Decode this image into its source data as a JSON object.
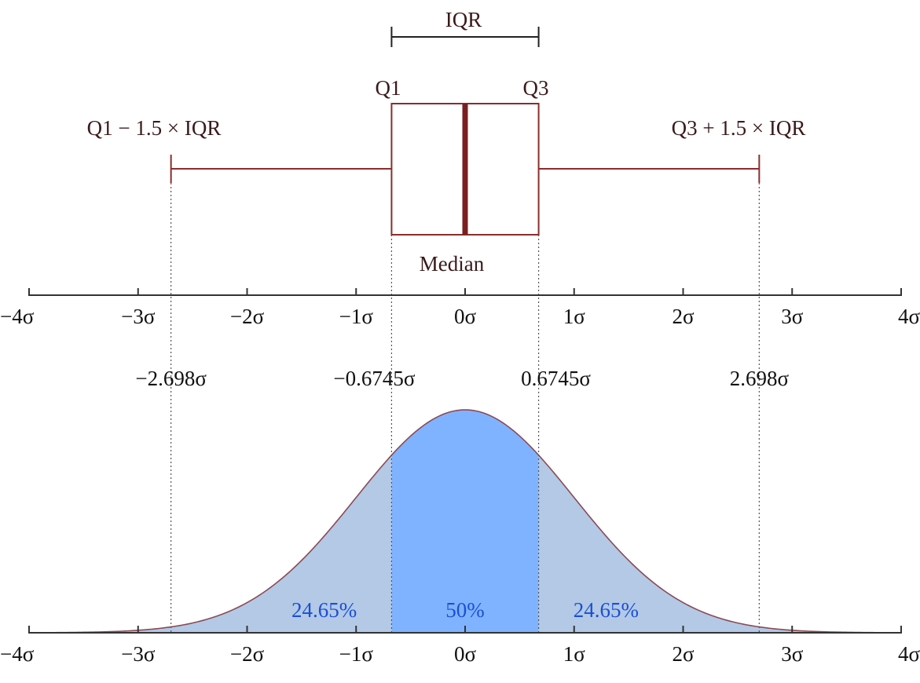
{
  "colors": {
    "box": "#8b2d2d",
    "median": "#7a1f1f",
    "label": "#3a1a1a",
    "axis": "#333333",
    "tail_fill": "#b3c9e6",
    "center_fill": "#80b3ff",
    "curve": "#8b4a55",
    "pct_text": "#1a4fd6"
  },
  "labels": {
    "iqr": "IQR",
    "q1": "Q1",
    "q3": "Q3",
    "lower_fence": "Q1 − 1.5 × IQR",
    "upper_fence": "Q3 + 1.5 × IQR",
    "median": "Median"
  },
  "chart_data": {
    "type": "area",
    "x_range": [
      -4,
      4
    ],
    "axis_ticks": [
      -4,
      -3,
      -2,
      -1,
      0,
      1,
      2,
      3,
      4
    ],
    "tick_labels": [
      "−4σ",
      "−3σ",
      "−2σ",
      "−1σ",
      "0σ",
      "1σ",
      "2σ",
      "3σ",
      "4σ"
    ],
    "boxplot": {
      "lower_whisker": -2.698,
      "q1": -0.6745,
      "median": 0,
      "q3": 0.6745,
      "upper_whisker": 2.698
    },
    "marker_values": [
      -2.698,
      -0.6745,
      0.6745,
      2.698
    ],
    "marker_labels": [
      "−2.698σ",
      "−0.6745σ",
      "0.6745σ",
      "2.698σ"
    ],
    "region_labels": [
      "24.65%",
      "50%",
      "24.65%"
    ]
  }
}
